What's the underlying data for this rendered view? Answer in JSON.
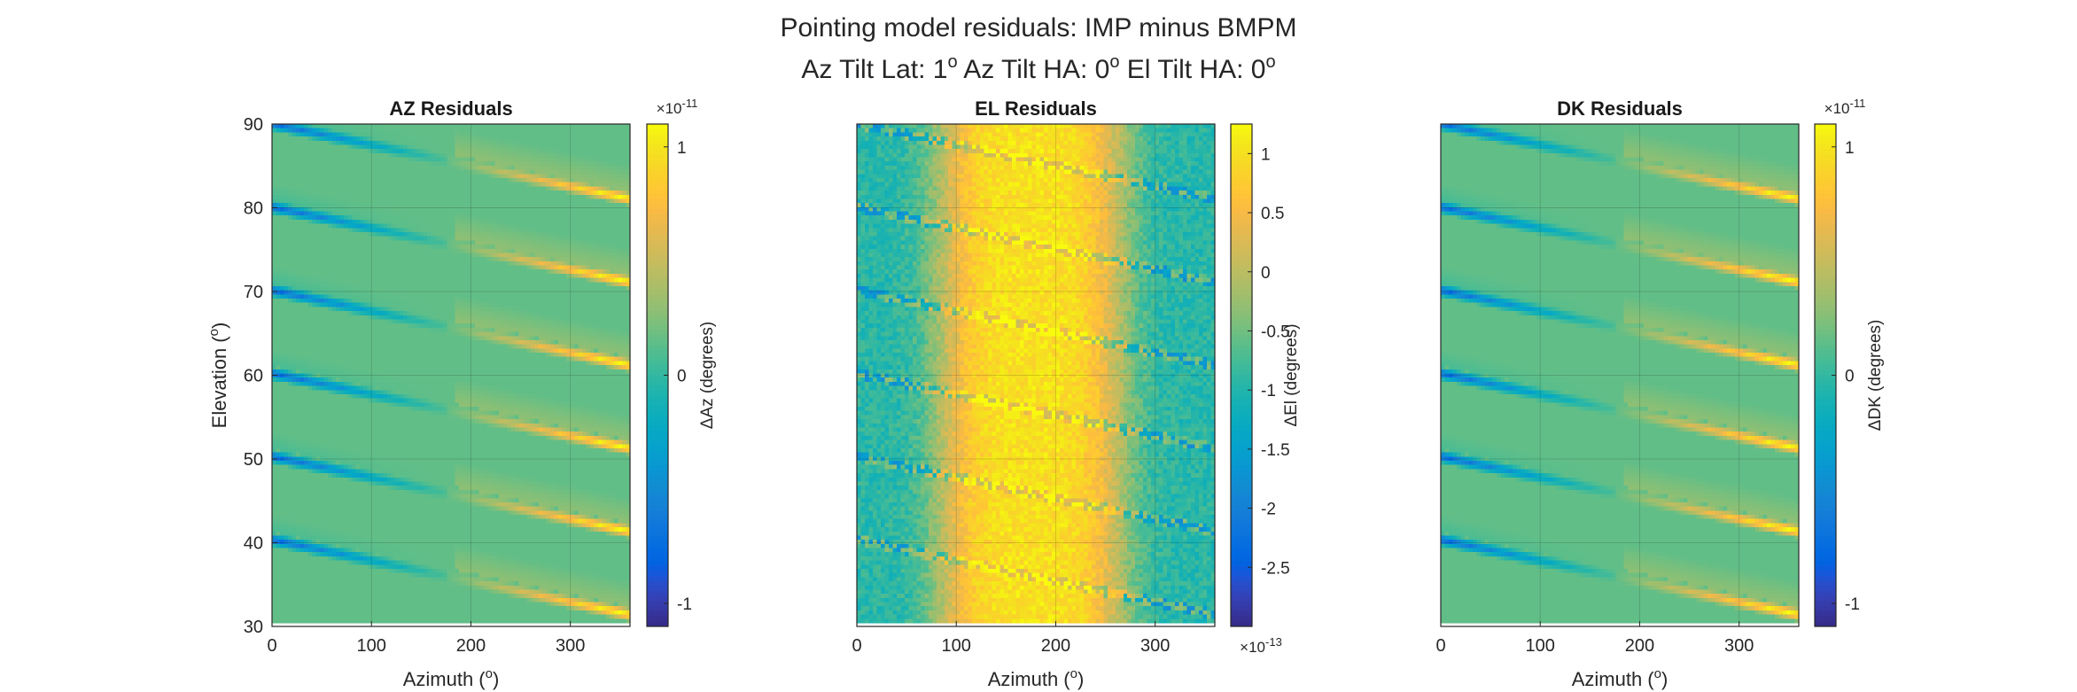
{
  "figure": {
    "title_line1": "Pointing model residuals: IMP minus BMPM",
    "title_line2_parts": [
      "Az Tilt Lat: 1",
      "o",
      " Az Tilt HA: 0",
      "o",
      " El Tilt HA: 0",
      "o"
    ]
  },
  "chart_data": [
    {
      "type": "heatmap",
      "title": "AZ Residuals",
      "xlabel": "Azimuth (",
      "xlabel_sup": "o",
      "xlabel_end": ")",
      "ylabel": "Elevation (",
      "ylabel_sup": "o",
      "ylabel_end": ")",
      "xlim": [
        0,
        360
      ],
      "ylim": [
        30,
        90
      ],
      "xticks": [
        "0",
        "100",
        "200",
        "300"
      ],
      "xtick_values": [
        0,
        100,
        200,
        300
      ],
      "yticks": [
        "30",
        "40",
        "50",
        "60",
        "70",
        "80",
        "90"
      ],
      "ytick_values": [
        30,
        40,
        50,
        60,
        70,
        80,
        90
      ],
      "grid": true,
      "colorbar": {
        "label": "ΔAz (degrees)",
        "ticks": [
          "-1",
          "0",
          "1"
        ],
        "tick_values": [
          -1,
          0,
          1
        ],
        "clim": [
          -1.1,
          1.1
        ],
        "exponent_base": "×10",
        "exponent": "-11",
        "exponent_position": "top"
      },
      "pattern": "streaks",
      "streak_starts": [
        90,
        80,
        70,
        60,
        50,
        40
      ],
      "background_value": 0.15
    },
    {
      "type": "heatmap",
      "title": "EL Residuals",
      "xlabel": "Azimuth (",
      "xlabel_sup": "o",
      "xlabel_end": ")",
      "xlim": [
        0,
        360
      ],
      "ylim": [
        30,
        90
      ],
      "xticks": [
        "0",
        "100",
        "200",
        "300"
      ],
      "xtick_values": [
        0,
        100,
        200,
        300
      ],
      "yticks": [],
      "grid": true,
      "colorbar": {
        "label": "ΔEl (degrees)",
        "ticks": [
          "-2.5",
          "-2",
          "-1.5",
          "-1",
          "-0.5",
          "0",
          "0.5",
          "1"
        ],
        "tick_values": [
          -2.5,
          -2,
          -1.5,
          -1,
          -0.5,
          0,
          0.5,
          1
        ],
        "clim": [
          -3.0,
          1.25
        ],
        "exponent_base": "×10",
        "exponent": "-13",
        "exponent_position": "bottom"
      },
      "pattern": "band",
      "streak_starts": [
        90,
        80,
        70,
        60,
        50,
        40
      ]
    },
    {
      "type": "heatmap",
      "title": "DK Residuals",
      "xlabel": "Azimuth (",
      "xlabel_sup": "o",
      "xlabel_end": ")",
      "xlim": [
        0,
        360
      ],
      "ylim": [
        30,
        90
      ],
      "xticks": [
        "0",
        "100",
        "200",
        "300"
      ],
      "xtick_values": [
        0,
        100,
        200,
        300
      ],
      "yticks": [],
      "grid": true,
      "colorbar": {
        "label": "ΔDK (degrees)",
        "ticks": [
          "-1",
          "0",
          "1"
        ],
        "tick_values": [
          -1,
          0,
          1
        ],
        "clim": [
          -1.1,
          1.1
        ],
        "exponent_base": "×10",
        "exponent": "-11",
        "exponent_position": "top"
      },
      "pattern": "streaks",
      "streak_starts": [
        90,
        80,
        70,
        60,
        50,
        40
      ],
      "background_value": 0.15
    }
  ],
  "colors": {
    "axis": "#262626",
    "background": "#ffffff"
  }
}
